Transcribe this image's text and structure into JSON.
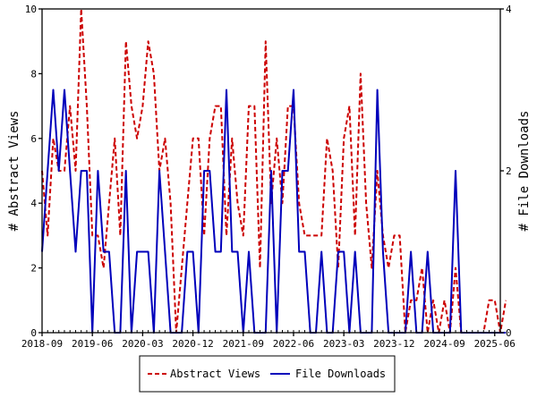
{
  "chart_data": {
    "type": "line",
    "title": "",
    "xlabel": "",
    "ylabel_left": "# Abstract Views",
    "ylabel_right": "# File Downloads",
    "x_tick_labels": [
      "2018-09",
      "2019-06",
      "2020-03",
      "2020-12",
      "2021-09",
      "2022-06",
      "2023-03",
      "2023-12",
      "2024-09",
      "2025-06"
    ],
    "x_tick_months": [
      0,
      9,
      18,
      27,
      36,
      45,
      54,
      63,
      72,
      81
    ],
    "xlim_months": [
      0,
      82
    ],
    "ylim_left": [
      0,
      10
    ],
    "ylim_right": [
      0,
      4
    ],
    "y_ticks_left": [
      0,
      2,
      4,
      6,
      8,
      10
    ],
    "y_ticks_right": [
      0,
      2,
      4
    ],
    "grid": false,
    "legend_position": "bottom-center",
    "series": [
      {
        "name": "Abstract Views",
        "axis": "left",
        "color": "#cc0000",
        "style": "dashed",
        "values": [
          5,
          3,
          6,
          5,
          5,
          7,
          5,
          10,
          7,
          3,
          3,
          2,
          4,
          6,
          3,
          9,
          7,
          6,
          7,
          9,
          8,
          5,
          6,
          4,
          0,
          2,
          4,
          6,
          6,
          3,
          6,
          7,
          7,
          3,
          6,
          4,
          3,
          7,
          7,
          2,
          9,
          4,
          6,
          4,
          7,
          7,
          4,
          3,
          3,
          3,
          3,
          6,
          5,
          2,
          6,
          7,
          3,
          8,
          4,
          2,
          5,
          3,
          2,
          3,
          3,
          0,
          1,
          1,
          2,
          0,
          1,
          0,
          1,
          0,
          2,
          0,
          0,
          0,
          0,
          0,
          1,
          1,
          0,
          1
        ]
      },
      {
        "name": "File Downloads",
        "axis": "right",
        "color": "#0000bb",
        "style": "solid",
        "values": [
          1,
          2,
          3,
          2,
          3,
          2,
          1,
          2,
          2,
          0,
          2,
          1,
          1,
          0,
          0,
          2,
          0,
          1,
          1,
          1,
          0,
          2,
          1,
          0,
          0,
          0,
          1,
          1,
          0,
          2,
          2,
          1,
          1,
          3,
          1,
          1,
          0,
          1,
          0,
          0,
          0,
          2,
          0,
          2,
          2,
          3,
          1,
          1,
          0,
          0,
          1,
          0,
          0,
          1,
          1,
          0,
          1,
          0,
          0,
          0,
          3,
          1,
          0,
          0,
          0,
          0,
          1,
          0,
          0,
          1,
          0,
          0,
          0,
          0,
          2,
          0,
          0,
          0,
          0,
          0,
          0,
          0,
          0,
          0
        ]
      }
    ]
  }
}
